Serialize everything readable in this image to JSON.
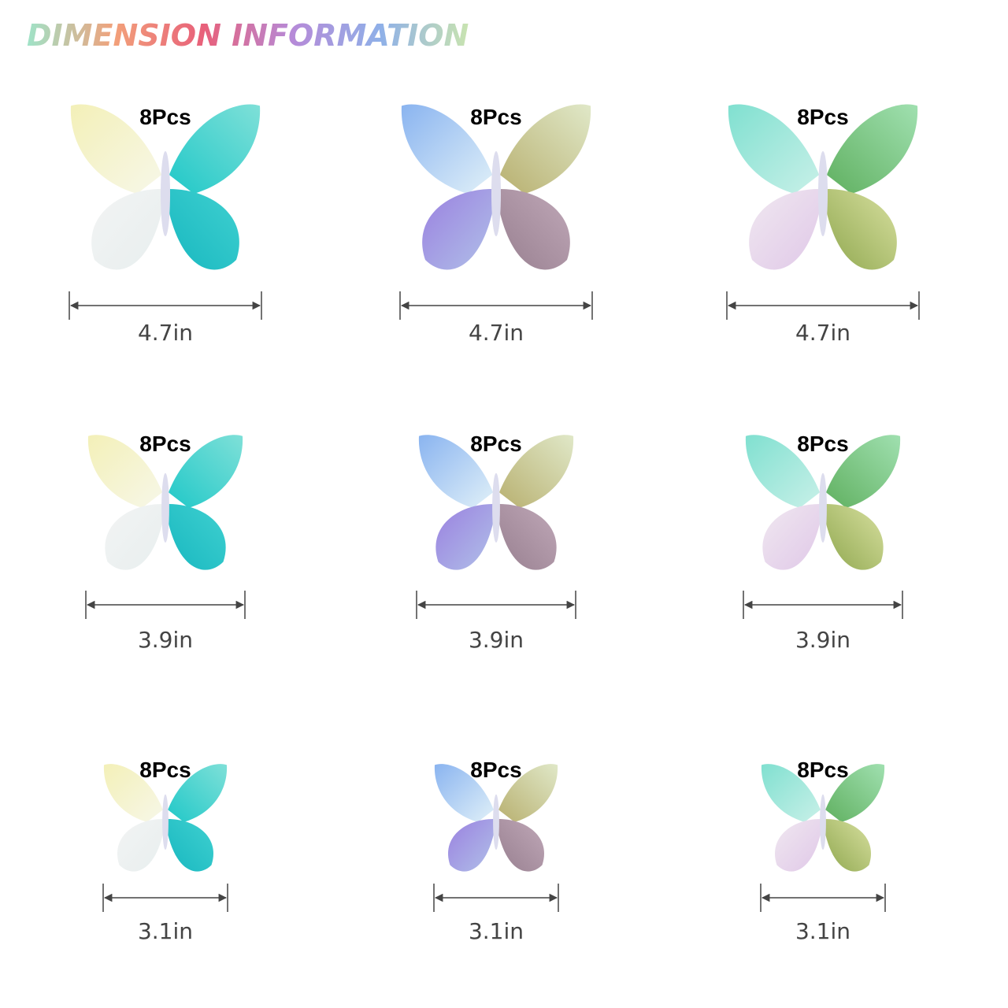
{
  "title": "DIMENSION INFORMATION",
  "items": [
    {
      "count": "8Pcs",
      "size": "4.7in"
    },
    {
      "count": "8Pcs",
      "size": "4.7in"
    },
    {
      "count": "8Pcs",
      "size": "4.7in"
    },
    {
      "count": "8Pcs",
      "size": "3.9in"
    },
    {
      "count": "8Pcs",
      "size": "3.9in"
    },
    {
      "count": "8Pcs",
      "size": "3.9in"
    },
    {
      "count": "8Pcs",
      "size": "3.1in"
    },
    {
      "count": "8Pcs",
      "size": "3.1in"
    },
    {
      "count": "8Pcs",
      "size": "3.1in"
    }
  ]
}
